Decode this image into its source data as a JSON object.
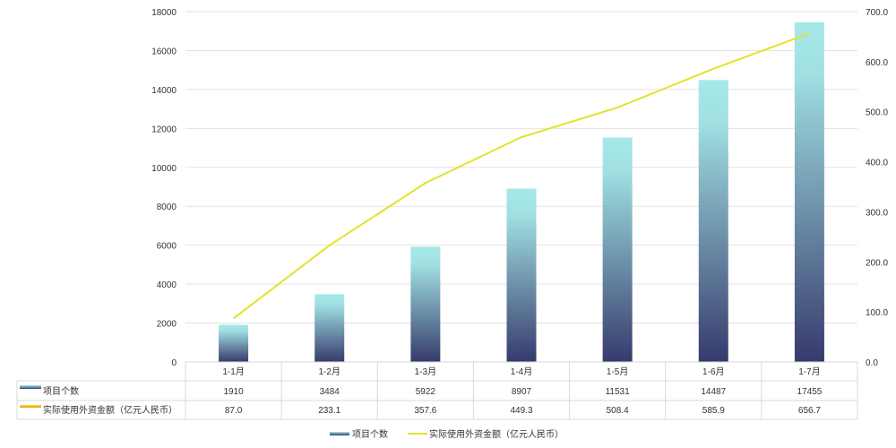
{
  "chart_data": {
    "type": "bar+line",
    "categories": [
      "1-1月",
      "1-2月",
      "1-3月",
      "1-4月",
      "1-5月",
      "1-6月",
      "1-7月"
    ],
    "series": [
      {
        "name": "项目个数",
        "type": "bar",
        "axis": "left",
        "values": [
          1910,
          3484,
          5922,
          8907,
          11531,
          14487,
          17455
        ],
        "labels": [
          "1910",
          "3484",
          "5922",
          "8907",
          "11531",
          "14487",
          "17455"
        ]
      },
      {
        "name": "实际使用外资金额（亿元人民币）",
        "type": "line",
        "axis": "right",
        "values": [
          87.0,
          233.1,
          357.6,
          449.3,
          508.4,
          585.9,
          656.7
        ],
        "labels": [
          "87.0",
          "233.1",
          "357.6",
          "449.3",
          "508.4",
          "585.9",
          "656.7"
        ]
      }
    ],
    "y_left": {
      "range": [
        0,
        18000
      ],
      "ticks": [
        "0",
        "2000",
        "4000",
        "6000",
        "8000",
        "10000",
        "12000",
        "14000",
        "16000",
        "18000"
      ]
    },
    "y_right": {
      "range": [
        0,
        700
      ],
      "ticks": [
        "0.0",
        "100.0",
        "200.0",
        "300.0",
        "400.0",
        "500.0",
        "600.0",
        "700.0"
      ]
    },
    "grid": true,
    "legend": "bottom",
    "data_table": true,
    "colors": {
      "bar_top": "#a6e8e8",
      "bar_bottom": "#363a6c",
      "line": "#e3e32a",
      "table_line_key": "#f0b400"
    }
  }
}
